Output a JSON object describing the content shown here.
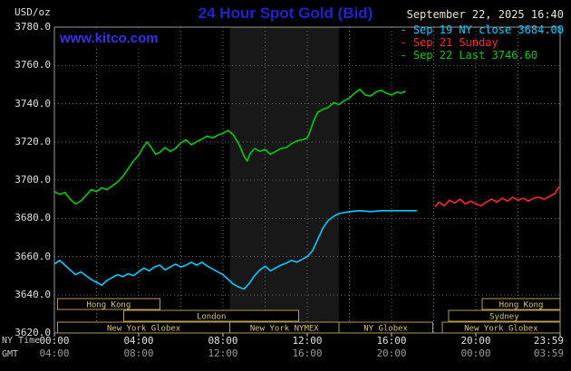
{
  "header": {
    "unit": "USD/oz",
    "title": "24 Hour Spot Gold (Bid)",
    "datetime": "September 22, 2025 16:40",
    "watermark": "www.kitco.com"
  },
  "legend": {
    "items": [
      {
        "name": "sep19",
        "label": "Sep 19 NY close 3684.00",
        "color": "#00ccff"
      },
      {
        "name": "sep21",
        "label": "Sep 21 Sunday",
        "color": "#ff2828"
      },
      {
        "name": "sep22",
        "label": "Sep 22 Last 3746.60",
        "color": "#00cc00"
      }
    ]
  },
  "colors": {
    "background": "#000000",
    "title": "#2222cc",
    "watermark": "#3232e6",
    "datetime_text": "#e9e4cf",
    "axis_text": "#e0e0e0",
    "gmt_text": "#9a9a9a",
    "grid": "#666666",
    "border": "#999999",
    "session_box": "#b49b4e",
    "session_text": "#d7c277",
    "nymex_band": "#181818"
  },
  "axes": {
    "y_label_values": [
      "3780.0",
      "3760.0",
      "3740.0",
      "3720.0",
      "3700.0",
      "3680.0",
      "3660.0",
      "3640.0",
      "3620.0"
    ],
    "x_row1_label": "NY Time",
    "x_row2_label": "GMT",
    "x_ticks": [
      {
        "hour": 0,
        "ny": "00:00",
        "gmt": "04:00"
      },
      {
        "hour": 4,
        "ny": "04:00",
        "gmt": "08:00"
      },
      {
        "hour": 8,
        "ny": "08:00",
        "gmt": "12:00"
      },
      {
        "hour": 12,
        "ny": "12:00",
        "gmt": "16:00"
      },
      {
        "hour": 16,
        "ny": "16:00",
        "gmt": "20:00"
      },
      {
        "hour": 20,
        "ny": "20:00",
        "gmt": "00:00"
      },
      {
        "hour": 24,
        "ny": "23:59",
        "gmt": "03:59"
      }
    ]
  },
  "sessions": {
    "rows": [
      [
        {
          "label": "Hong Kong",
          "start": 0.15,
          "end": 5.0
        },
        {
          "label": "Hong Kong",
          "start": 20.3,
          "end": 24
        }
      ],
      [
        {
          "label": "London",
          "start": 3.3,
          "end": 11.6
        },
        {
          "label": "Sydney",
          "start": 18.7,
          "end": 24
        }
      ],
      [
        {
          "label": "New York Globex",
          "start": 0.15,
          "end": 8.33
        },
        {
          "label": "New York NYMEX",
          "start": 8.33,
          "end": 13.5
        },
        {
          "label": "NY Globex",
          "start": 13.5,
          "end": 17.95
        },
        {
          "label": "New York Globex",
          "start": 18.4,
          "end": 24
        }
      ]
    ]
  },
  "chart_data": {
    "type": "line",
    "title": "24 Hour Spot Gold (Bid)",
    "xlabel": "NY Time (hours)",
    "ylabel": "USD/oz",
    "x_range": [
      0,
      24
    ],
    "y_range": [
      3620,
      3780
    ],
    "y_tick_step": 20,
    "grid": true,
    "legend_position": "top-right",
    "highlight_band": {
      "start_hour": 8.33,
      "end_hour": 13.5
    },
    "series": [
      {
        "name": "Sep 19 NY close 3684.00",
        "color": "#00ccff",
        "points": [
          [
            0,
            3656
          ],
          [
            0.25,
            3658
          ],
          [
            0.5,
            3655.5
          ],
          [
            0.75,
            3653
          ],
          [
            1,
            3650.5
          ],
          [
            1.25,
            3652
          ],
          [
            1.5,
            3650
          ],
          [
            1.75,
            3648
          ],
          [
            2,
            3646.5
          ],
          [
            2.25,
            3645
          ],
          [
            2.5,
            3647.5
          ],
          [
            2.75,
            3649
          ],
          [
            3,
            3650.5
          ],
          [
            3.25,
            3649.5
          ],
          [
            3.5,
            3651
          ],
          [
            3.75,
            3650
          ],
          [
            4,
            3652
          ],
          [
            4.25,
            3654
          ],
          [
            4.5,
            3652.5
          ],
          [
            4.75,
            3654.5
          ],
          [
            5,
            3655.5
          ],
          [
            5.25,
            3653
          ],
          [
            5.5,
            3654.5
          ],
          [
            5.75,
            3656
          ],
          [
            6,
            3654.5
          ],
          [
            6.25,
            3655.5
          ],
          [
            6.5,
            3657
          ],
          [
            6.75,
            3655.5
          ],
          [
            7,
            3657
          ],
          [
            7.25,
            3655
          ],
          [
            7.5,
            3653.5
          ],
          [
            7.75,
            3652
          ],
          [
            8,
            3650.5
          ],
          [
            8.25,
            3648
          ],
          [
            8.5,
            3645.5
          ],
          [
            8.75,
            3644
          ],
          [
            9,
            3643
          ],
          [
            9.25,
            3646
          ],
          [
            9.5,
            3650
          ],
          [
            9.75,
            3653
          ],
          [
            10,
            3655
          ],
          [
            10.25,
            3652.5
          ],
          [
            10.5,
            3654
          ],
          [
            10.75,
            3655.5
          ],
          [
            11,
            3656.5
          ],
          [
            11.25,
            3658
          ],
          [
            11.5,
            3657
          ],
          [
            11.75,
            3658.5
          ],
          [
            12,
            3660
          ],
          [
            12.25,
            3663
          ],
          [
            12.5,
            3669
          ],
          [
            12.75,
            3675
          ],
          [
            13,
            3679
          ],
          [
            13.25,
            3681
          ],
          [
            13.5,
            3682.5
          ],
          [
            13.75,
            3683
          ],
          [
            14,
            3683.5
          ],
          [
            14.5,
            3684
          ],
          [
            15,
            3683.5
          ],
          [
            15.5,
            3684
          ],
          [
            16,
            3684
          ],
          [
            16.5,
            3684
          ],
          [
            17,
            3684
          ],
          [
            17.2,
            3684
          ]
        ]
      },
      {
        "name": "Sep 21 Sunday",
        "color": "#ff2828",
        "points": [
          [
            18.05,
            3686
          ],
          [
            18.25,
            3688.5
          ],
          [
            18.5,
            3686.5
          ],
          [
            18.75,
            3689.5
          ],
          [
            19,
            3688
          ],
          [
            19.25,
            3690
          ],
          [
            19.5,
            3687.5
          ],
          [
            19.75,
            3689
          ],
          [
            20,
            3687.5
          ],
          [
            20.25,
            3686.5
          ],
          [
            20.5,
            3688.5
          ],
          [
            20.75,
            3690
          ],
          [
            21,
            3688.5
          ],
          [
            21.25,
            3690.5
          ],
          [
            21.5,
            3689
          ],
          [
            21.75,
            3691
          ],
          [
            22,
            3689.5
          ],
          [
            22.25,
            3690.5
          ],
          [
            22.5,
            3689
          ],
          [
            22.75,
            3690.5
          ],
          [
            23,
            3691
          ],
          [
            23.25,
            3690
          ],
          [
            23.5,
            3691.5
          ],
          [
            23.75,
            3693
          ],
          [
            23.95,
            3696.5
          ]
        ]
      },
      {
        "name": "Sep 22 Last 3746.60",
        "color": "#00cc00",
        "points": [
          [
            0,
            3694
          ],
          [
            0.25,
            3692.5
          ],
          [
            0.5,
            3693.5
          ],
          [
            0.75,
            3690
          ],
          [
            1,
            3687.5
          ],
          [
            1.25,
            3689
          ],
          [
            1.5,
            3692
          ],
          [
            1.75,
            3695
          ],
          [
            2,
            3694
          ],
          [
            2.25,
            3696
          ],
          [
            2.5,
            3695
          ],
          [
            2.75,
            3697
          ],
          [
            3,
            3699
          ],
          [
            3.25,
            3702
          ],
          [
            3.5,
            3706
          ],
          [
            3.75,
            3710
          ],
          [
            4,
            3713
          ],
          [
            4.2,
            3717
          ],
          [
            4.4,
            3720
          ],
          [
            4.6,
            3717
          ],
          [
            4.8,
            3713.5
          ],
          [
            5,
            3714.5
          ],
          [
            5.25,
            3717
          ],
          [
            5.5,
            3715
          ],
          [
            5.75,
            3716.5
          ],
          [
            6,
            3719.5
          ],
          [
            6.25,
            3721
          ],
          [
            6.5,
            3718.5
          ],
          [
            6.75,
            3720
          ],
          [
            7,
            3721.5
          ],
          [
            7.25,
            3723
          ],
          [
            7.5,
            3722
          ],
          [
            7.75,
            3723.5
          ],
          [
            8,
            3724.5
          ],
          [
            8.25,
            3726
          ],
          [
            8.5,
            3723.5
          ],
          [
            8.75,
            3719
          ],
          [
            9,
            3712.5
          ],
          [
            9.15,
            3710
          ],
          [
            9.3,
            3714
          ],
          [
            9.5,
            3716.5
          ],
          [
            9.75,
            3715
          ],
          [
            10,
            3716
          ],
          [
            10.25,
            3713.5
          ],
          [
            10.5,
            3715
          ],
          [
            10.75,
            3716.5
          ],
          [
            11,
            3717
          ],
          [
            11.25,
            3719
          ],
          [
            11.5,
            3720.5
          ],
          [
            11.75,
            3721
          ],
          [
            12,
            3722
          ],
          [
            12.15,
            3726
          ],
          [
            12.3,
            3731
          ],
          [
            12.5,
            3735.5
          ],
          [
            12.75,
            3737
          ],
          [
            13,
            3738
          ],
          [
            13.25,
            3740.5
          ],
          [
            13.5,
            3739.5
          ],
          [
            13.75,
            3741.5
          ],
          [
            14,
            3743
          ],
          [
            14.25,
            3745.5
          ],
          [
            14.5,
            3747.5
          ],
          [
            14.75,
            3744.5
          ],
          [
            15,
            3744
          ],
          [
            15.25,
            3746
          ],
          [
            15.5,
            3747
          ],
          [
            15.75,
            3745.5
          ],
          [
            16,
            3744.5
          ],
          [
            16.25,
            3746
          ],
          [
            16.45,
            3745.5
          ],
          [
            16.67,
            3746.6
          ]
        ]
      }
    ]
  }
}
